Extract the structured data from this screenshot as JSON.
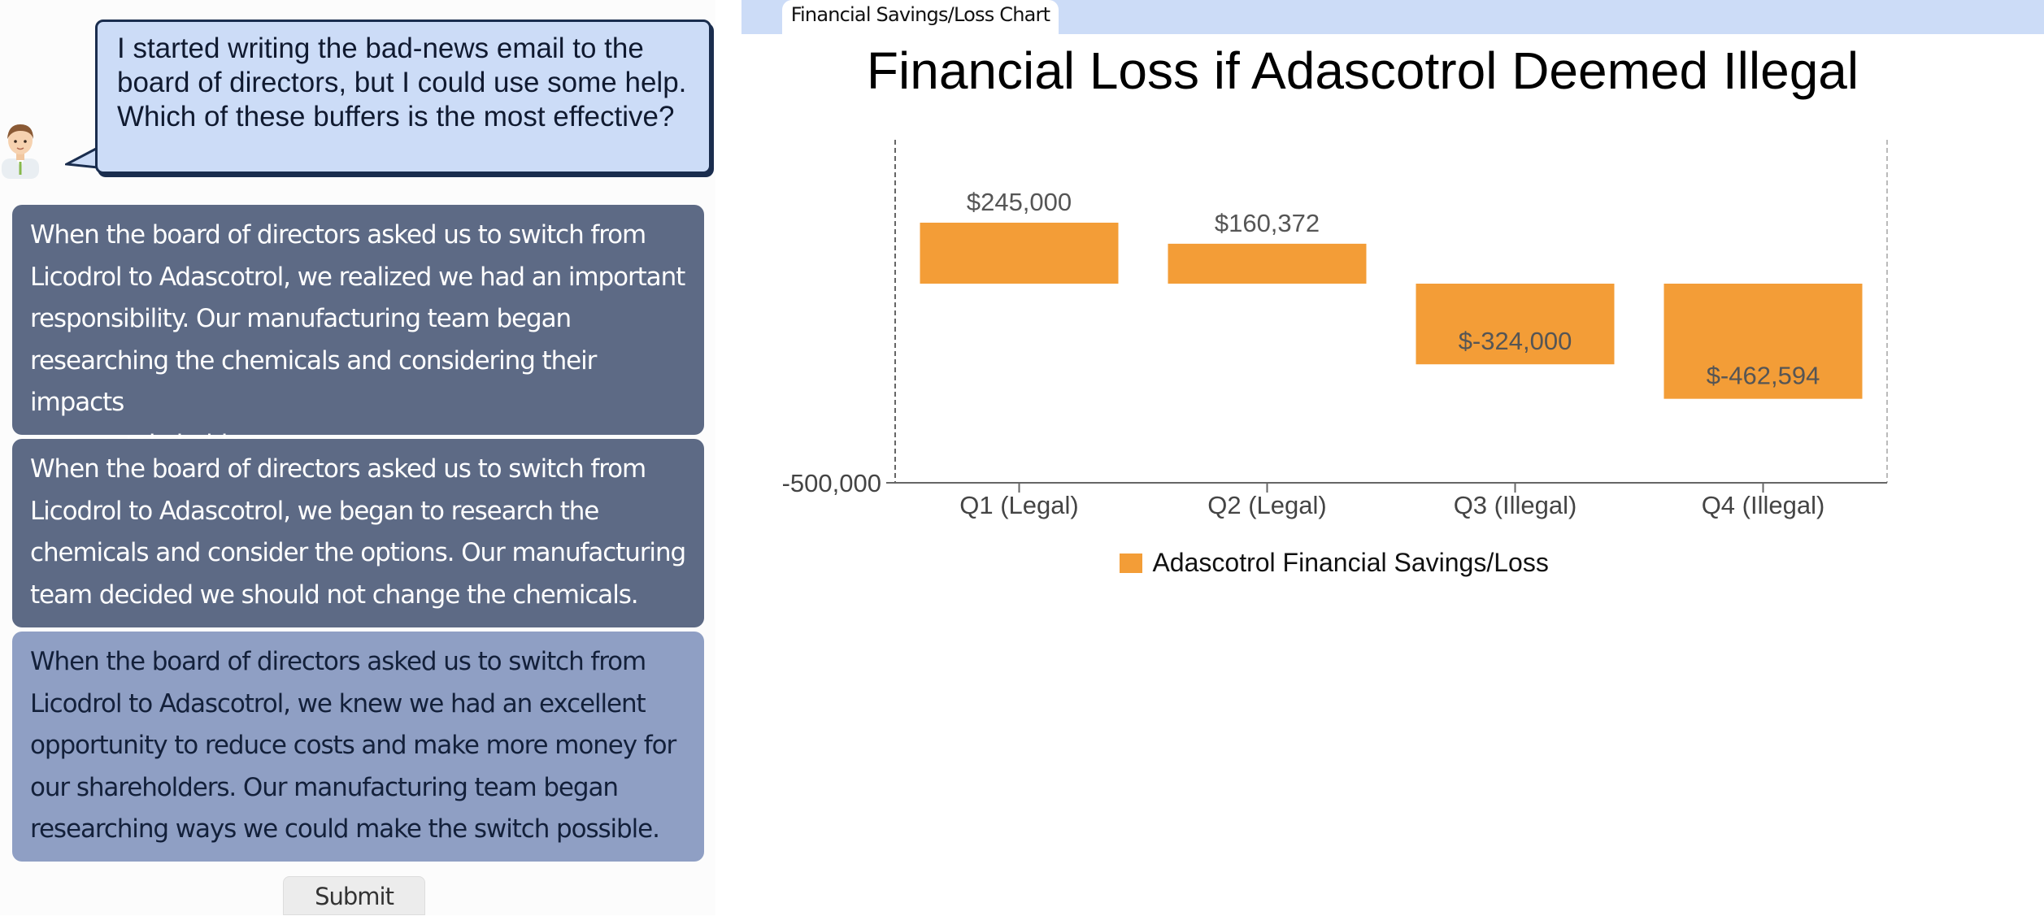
{
  "question": {
    "text": "I started writing the bad-news email to the board of directors, but I could use some help. Which of these buffers is the most effective?"
  },
  "options": [
    {
      "line1": "When the board of directors asked us to switch from",
      "line2": "Licodrol to Adascotrol, we realized we had an important",
      "line3": "responsibility. Our manufacturing team began",
      "line4": "researching the chemicals and considering their impacts",
      "line5": "on our stakeholders."
    },
    {
      "line1": "When the board of directors asked us to switch from",
      "line2": "Licodrol to Adascotrol, we began to research the",
      "line3": "chemicals and consider the options. Our manufacturing",
      "line4": "team decided we should not change the chemicals."
    },
    {
      "line1": "When the board of directors asked us to switch from",
      "line2": "Licodrol to Adascotrol, we knew we had an excellent",
      "line3": "opportunity to reduce costs and make more money for",
      "line4": "our shareholders. Our manufacturing team began",
      "line5": "researching ways we could make the switch possible."
    }
  ],
  "submit_label": "Submit",
  "tab": {
    "label": "Financial Savings/Loss Chart"
  },
  "colors": {
    "bar": "#f39d37",
    "bubble": "#ccdcf7",
    "option_dark": "#5d6a85",
    "option_light": "#8f9fc4"
  },
  "chart_data": {
    "type": "bar",
    "title": "Financial Loss if Adascotrol Deemed Illegal",
    "categories": [
      "Q1 (Legal)",
      "Q2 (Legal)",
      "Q3 (Illegal)",
      "Q4 (Illegal)"
    ],
    "series": [
      {
        "name": "Adascotrol Financial Savings/Loss",
        "values": [
          245000,
          160372,
          -324000,
          -462594
        ],
        "labels": [
          "$245,000",
          "$160,372",
          "$-324,000",
          "$-462,594"
        ]
      }
    ],
    "ytick_labels": [
      "-500,000"
    ],
    "ylim": [
      -500000,
      380000
    ],
    "legend": "bottom"
  }
}
